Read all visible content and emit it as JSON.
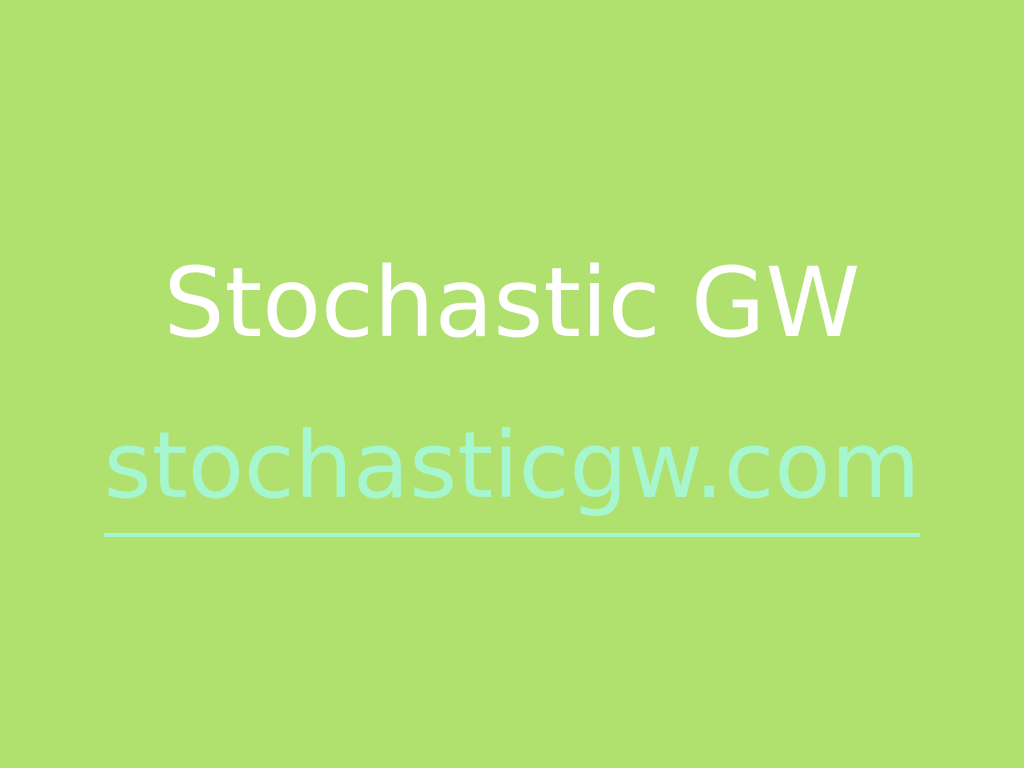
{
  "screen": {
    "title": "Stochastic GW",
    "link_text": "stochasticgw.com"
  },
  "colors": {
    "background": "#b0e16e",
    "title": "#ffffff",
    "link": "#a6f7cf"
  }
}
